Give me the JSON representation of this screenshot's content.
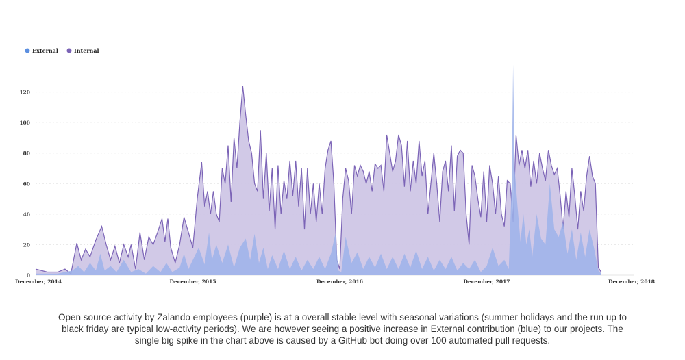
{
  "chart_data": {
    "type": "area",
    "legend": [
      {
        "name": "External",
        "color": "#5b8fe0"
      },
      {
        "name": "Internal",
        "color": "#7b63b6"
      }
    ],
    "legend_position": "top-left",
    "grid": true,
    "ylim": [
      0,
      140
    ],
    "yticks": [
      "0",
      "20",
      "40",
      "60",
      "80",
      "100",
      "120"
    ],
    "xlim": [
      2014.85,
      2018.92
    ],
    "xticks": [
      {
        "label": "December, 2014",
        "value": 2014.92
      },
      {
        "label": "December, 2015",
        "value": 2015.92
      },
      {
        "label": "December, 2016",
        "value": 2016.92
      },
      {
        "label": "December, 2017",
        "value": 2017.92
      },
      {
        "label": "December, 2018",
        "value": 2018.92
      }
    ],
    "series": [
      {
        "name": "Internal",
        "color": "#7b63b6",
        "fill": "#cfc6e6",
        "points": [
          [
            2014.85,
            4
          ],
          [
            2014.93,
            2
          ],
          [
            2015.0,
            2
          ],
          [
            2015.05,
            4
          ],
          [
            2015.09,
            1
          ],
          [
            2015.13,
            21
          ],
          [
            2015.16,
            10
          ],
          [
            2015.19,
            17
          ],
          [
            2015.22,
            12
          ],
          [
            2015.26,
            23
          ],
          [
            2015.3,
            32
          ],
          [
            2015.33,
            20
          ],
          [
            2015.36,
            10
          ],
          [
            2015.39,
            19
          ],
          [
            2015.42,
            8
          ],
          [
            2015.45,
            20
          ],
          [
            2015.48,
            12
          ],
          [
            2015.5,
            20
          ],
          [
            2015.53,
            4
          ],
          [
            2015.56,
            28
          ],
          [
            2015.59,
            10
          ],
          [
            2015.62,
            25
          ],
          [
            2015.65,
            20
          ],
          [
            2015.68,
            28
          ],
          [
            2015.71,
            37
          ],
          [
            2015.73,
            22
          ],
          [
            2015.75,
            37
          ],
          [
            2015.77,
            18
          ],
          [
            2015.8,
            8
          ],
          [
            2015.83,
            20
          ],
          [
            2015.86,
            38
          ],
          [
            2015.89,
            28
          ],
          [
            2015.92,
            18
          ],
          [
            2015.95,
            50
          ],
          [
            2015.98,
            74
          ],
          [
            2016.0,
            45
          ],
          [
            2016.02,
            55
          ],
          [
            2016.04,
            40
          ],
          [
            2016.06,
            55
          ],
          [
            2016.08,
            40
          ],
          [
            2016.1,
            35
          ],
          [
            2016.12,
            70
          ],
          [
            2016.14,
            60
          ],
          [
            2016.16,
            85
          ],
          [
            2016.18,
            48
          ],
          [
            2016.2,
            90
          ],
          [
            2016.22,
            70
          ],
          [
            2016.24,
            100
          ],
          [
            2016.26,
            124
          ],
          [
            2016.28,
            105
          ],
          [
            2016.3,
            88
          ],
          [
            2016.32,
            80
          ],
          [
            2016.34,
            60
          ],
          [
            2016.36,
            55
          ],
          [
            2016.38,
            95
          ],
          [
            2016.4,
            50
          ],
          [
            2016.42,
            80
          ],
          [
            2016.44,
            42
          ],
          [
            2016.46,
            70
          ],
          [
            2016.48,
            30
          ],
          [
            2016.5,
            72
          ],
          [
            2016.52,
            40
          ],
          [
            2016.54,
            62
          ],
          [
            2016.56,
            50
          ],
          [
            2016.58,
            75
          ],
          [
            2016.6,
            52
          ],
          [
            2016.62,
            75
          ],
          [
            2016.64,
            45
          ],
          [
            2016.66,
            70
          ],
          [
            2016.68,
            30
          ],
          [
            2016.7,
            70
          ],
          [
            2016.72,
            40
          ],
          [
            2016.74,
            60
          ],
          [
            2016.76,
            35
          ],
          [
            2016.78,
            60
          ],
          [
            2016.8,
            40
          ],
          [
            2016.82,
            70
          ],
          [
            2016.84,
            82
          ],
          [
            2016.86,
            88
          ],
          [
            2016.88,
            60
          ],
          [
            2016.9,
            10
          ],
          [
            2016.92,
            4
          ],
          [
            2016.94,
            50
          ],
          [
            2016.96,
            70
          ],
          [
            2016.98,
            62
          ],
          [
            2017.0,
            40
          ],
          [
            2017.02,
            72
          ],
          [
            2017.04,
            65
          ],
          [
            2017.06,
            72
          ],
          [
            2017.08,
            68
          ],
          [
            2017.1,
            60
          ],
          [
            2017.12,
            68
          ],
          [
            2017.14,
            55
          ],
          [
            2017.16,
            73
          ],
          [
            2017.18,
            70
          ],
          [
            2017.2,
            72
          ],
          [
            2017.22,
            55
          ],
          [
            2017.24,
            92
          ],
          [
            2017.26,
            80
          ],
          [
            2017.28,
            68
          ],
          [
            2017.3,
            75
          ],
          [
            2017.32,
            92
          ],
          [
            2017.34,
            85
          ],
          [
            2017.36,
            58
          ],
          [
            2017.38,
            88
          ],
          [
            2017.4,
            55
          ],
          [
            2017.42,
            75
          ],
          [
            2017.44,
            60
          ],
          [
            2017.46,
            88
          ],
          [
            2017.48,
            65
          ],
          [
            2017.5,
            75
          ],
          [
            2017.52,
            40
          ],
          [
            2017.54,
            60
          ],
          [
            2017.56,
            80
          ],
          [
            2017.58,
            60
          ],
          [
            2017.6,
            35
          ],
          [
            2017.62,
            68
          ],
          [
            2017.64,
            75
          ],
          [
            2017.66,
            55
          ],
          [
            2017.68,
            85
          ],
          [
            2017.7,
            42
          ],
          [
            2017.72,
            78
          ],
          [
            2017.74,
            82
          ],
          [
            2017.76,
            80
          ],
          [
            2017.78,
            40
          ],
          [
            2017.8,
            20
          ],
          [
            2017.82,
            72
          ],
          [
            2017.84,
            65
          ],
          [
            2017.86,
            50
          ],
          [
            2017.88,
            38
          ],
          [
            2017.9,
            68
          ],
          [
            2017.92,
            35
          ],
          [
            2017.94,
            72
          ],
          [
            2017.96,
            60
          ],
          [
            2017.98,
            40
          ],
          [
            2018.0,
            65
          ],
          [
            2018.02,
            40
          ],
          [
            2018.04,
            32
          ],
          [
            2018.06,
            62
          ],
          [
            2018.08,
            60
          ],
          [
            2018.1,
            35
          ],
          [
            2018.12,
            92
          ],
          [
            2018.14,
            72
          ],
          [
            2018.16,
            82
          ],
          [
            2018.18,
            70
          ],
          [
            2018.2,
            82
          ],
          [
            2018.22,
            58
          ],
          [
            2018.24,
            75
          ],
          [
            2018.26,
            60
          ],
          [
            2018.28,
            80
          ],
          [
            2018.3,
            70
          ],
          [
            2018.32,
            62
          ],
          [
            2018.34,
            82
          ],
          [
            2018.36,
            72
          ],
          [
            2018.38,
            66
          ],
          [
            2018.4,
            70
          ],
          [
            2018.42,
            52
          ],
          [
            2018.44,
            30
          ],
          [
            2018.46,
            55
          ],
          [
            2018.48,
            38
          ],
          [
            2018.5,
            70
          ],
          [
            2018.52,
            52
          ],
          [
            2018.54,
            30
          ],
          [
            2018.56,
            55
          ],
          [
            2018.58,
            42
          ],
          [
            2018.6,
            65
          ],
          [
            2018.62,
            78
          ],
          [
            2018.64,
            65
          ],
          [
            2018.66,
            60
          ],
          [
            2018.68,
            5
          ],
          [
            2018.7,
            2
          ]
        ]
      },
      {
        "name": "External",
        "color": "#5b8fe0",
        "fill": "#9db3ea",
        "points": [
          [
            2014.85,
            1
          ],
          [
            2015.0,
            1
          ],
          [
            2015.1,
            3
          ],
          [
            2015.14,
            6
          ],
          [
            2015.18,
            2
          ],
          [
            2015.22,
            8
          ],
          [
            2015.26,
            3
          ],
          [
            2015.29,
            14
          ],
          [
            2015.32,
            3
          ],
          [
            2015.36,
            6
          ],
          [
            2015.4,
            2
          ],
          [
            2015.45,
            10
          ],
          [
            2015.5,
            2
          ],
          [
            2015.55,
            4
          ],
          [
            2015.6,
            1
          ],
          [
            2015.65,
            6
          ],
          [
            2015.7,
            2
          ],
          [
            2015.74,
            8
          ],
          [
            2015.78,
            2
          ],
          [
            2015.83,
            5
          ],
          [
            2015.86,
            14
          ],
          [
            2015.89,
            4
          ],
          [
            2015.93,
            12
          ],
          [
            2015.96,
            18
          ],
          [
            2016.0,
            7
          ],
          [
            2016.03,
            28
          ],
          [
            2016.05,
            10
          ],
          [
            2016.08,
            20
          ],
          [
            2016.12,
            8
          ],
          [
            2016.16,
            20
          ],
          [
            2016.2,
            5
          ],
          [
            2016.24,
            18
          ],
          [
            2016.28,
            24
          ],
          [
            2016.31,
            10
          ],
          [
            2016.34,
            27
          ],
          [
            2016.37,
            8
          ],
          [
            2016.4,
            18
          ],
          [
            2016.43,
            4
          ],
          [
            2016.46,
            13
          ],
          [
            2016.5,
            4
          ],
          [
            2016.54,
            16
          ],
          [
            2016.58,
            4
          ],
          [
            2016.62,
            12
          ],
          [
            2016.66,
            3
          ],
          [
            2016.7,
            10
          ],
          [
            2016.74,
            4
          ],
          [
            2016.78,
            12
          ],
          [
            2016.82,
            4
          ],
          [
            2016.86,
            14
          ],
          [
            2016.89,
            27
          ],
          [
            2016.91,
            3
          ],
          [
            2016.93,
            2
          ],
          [
            2016.96,
            25
          ],
          [
            2017.0,
            8
          ],
          [
            2017.04,
            15
          ],
          [
            2017.08,
            4
          ],
          [
            2017.12,
            12
          ],
          [
            2017.16,
            5
          ],
          [
            2017.2,
            14
          ],
          [
            2017.24,
            4
          ],
          [
            2017.28,
            12
          ],
          [
            2017.32,
            4
          ],
          [
            2017.36,
            14
          ],
          [
            2017.4,
            5
          ],
          [
            2017.44,
            16
          ],
          [
            2017.48,
            4
          ],
          [
            2017.52,
            12
          ],
          [
            2017.56,
            3
          ],
          [
            2017.6,
            10
          ],
          [
            2017.64,
            4
          ],
          [
            2017.68,
            12
          ],
          [
            2017.72,
            3
          ],
          [
            2017.76,
            8
          ],
          [
            2017.8,
            4
          ],
          [
            2017.84,
            10
          ],
          [
            2017.88,
            2
          ],
          [
            2017.92,
            6
          ],
          [
            2017.96,
            18
          ],
          [
            2018.0,
            6
          ],
          [
            2018.04,
            10
          ],
          [
            2018.07,
            4
          ],
          [
            2018.09,
            60
          ],
          [
            2018.1,
            138
          ],
          [
            2018.11,
            70
          ],
          [
            2018.13,
            45
          ],
          [
            2018.15,
            22
          ],
          [
            2018.17,
            40
          ],
          [
            2018.19,
            20
          ],
          [
            2018.21,
            30
          ],
          [
            2018.23,
            12
          ],
          [
            2018.26,
            40
          ],
          [
            2018.29,
            24
          ],
          [
            2018.32,
            20
          ],
          [
            2018.35,
            60
          ],
          [
            2018.38,
            30
          ],
          [
            2018.41,
            25
          ],
          [
            2018.44,
            35
          ],
          [
            2018.47,
            14
          ],
          [
            2018.5,
            30
          ],
          [
            2018.53,
            10
          ],
          [
            2018.56,
            28
          ],
          [
            2018.59,
            12
          ],
          [
            2018.62,
            30
          ],
          [
            2018.65,
            18
          ],
          [
            2018.68,
            3
          ],
          [
            2018.7,
            1
          ]
        ]
      }
    ]
  },
  "caption": {
    "line1": "Open source activity by Zalando employees (purple) is at a overall stable level with seasonal variations (summer holidays and the run up to",
    "line2": "black friday are typical low-activity periods). We are however seeing a positive increase in External contribution (blue) to our projects. The",
    "line3": "single big spike in the chart above is caused by a GitHub bot doing over 100 automated pull requests."
  }
}
